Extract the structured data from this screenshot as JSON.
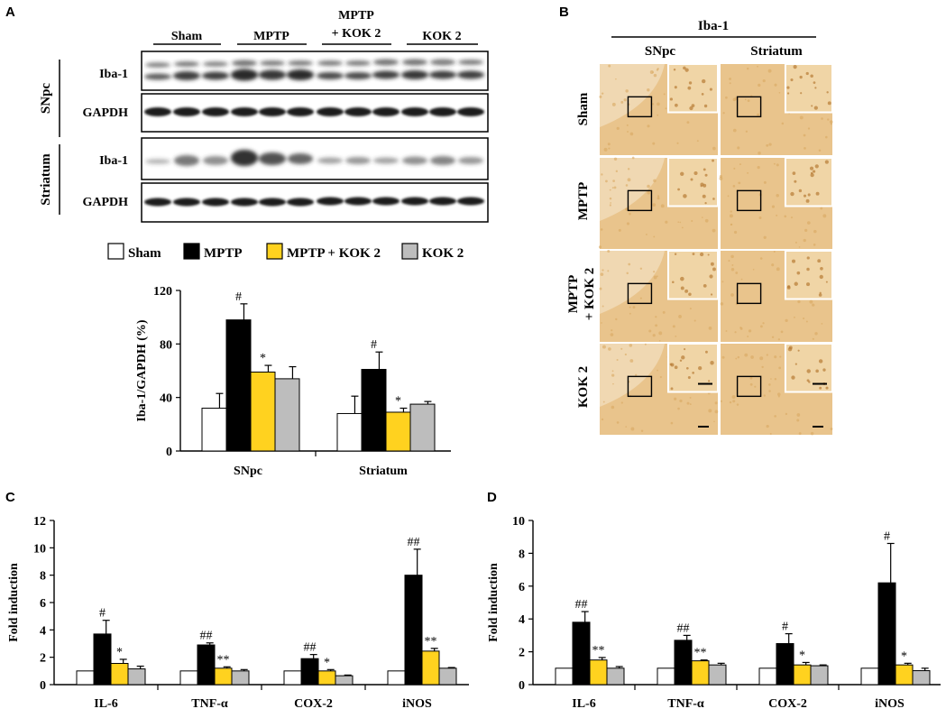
{
  "panels": {
    "a": "A",
    "b": "B",
    "c": "C",
    "d": "D"
  },
  "colors": {
    "sham": "#ffffff",
    "mptp": "#000000",
    "mptp_kok2": "#ffd21f",
    "kok2": "#bdbdbd",
    "tissue": "#e9c48c",
    "tissue_dark": "#d9a860"
  },
  "western": {
    "groups": [
      "Sham",
      "MPTP",
      "MPTP",
      "+ KOK 2",
      "KOK 2"
    ],
    "regions": [
      "SNpc",
      "Striatum"
    ],
    "rows": [
      "Iba-1",
      "GAPDH",
      "Iba-1",
      "GAPDH"
    ]
  },
  "legend": [
    "Sham",
    "MPTP",
    "MPTP + KOK 2",
    "KOK 2"
  ],
  "histology": {
    "title": "Iba-1",
    "columns": [
      "SNpc",
      "Striatum"
    ],
    "rows": [
      "Sham",
      "MPTP",
      "MPTP",
      "+ KOK 2",
      "KOK 2"
    ]
  },
  "chart_data": [
    {
      "type": "bar",
      "panel": "A",
      "categories": [
        "SNpc",
        "Striatum"
      ],
      "ylabel": "Iba-1/GAPDH (%)",
      "ylim": [
        0,
        120
      ],
      "yticks": [
        "0",
        "40",
        "80",
        "120"
      ],
      "series": [
        {
          "name": "Sham",
          "values": [
            32,
            28
          ],
          "errors": [
            11,
            13
          ],
          "sig": [
            "",
            ""
          ]
        },
        {
          "name": "MPTP",
          "values": [
            98,
            61
          ],
          "errors": [
            12,
            13
          ],
          "sig": [
            "#",
            "#"
          ]
        },
        {
          "name": "MPTP + KOK 2",
          "values": [
            59,
            29
          ],
          "errors": [
            5,
            3
          ],
          "sig": [
            "*",
            "*"
          ]
        },
        {
          "name": "KOK 2",
          "values": [
            54,
            35
          ],
          "errors": [
            9,
            2
          ],
          "sig": [
            "",
            ""
          ]
        }
      ]
    },
    {
      "type": "bar",
      "panel": "C",
      "categories": [
        "IL-6",
        "TNF-α",
        "COX-2",
        "iNOS"
      ],
      "ylabel": "Fold induction",
      "ylim": [
        0,
        12
      ],
      "yticks": [
        "0",
        "2",
        "4",
        "6",
        "8",
        "10",
        "12"
      ],
      "series": [
        {
          "name": "Sham",
          "values": [
            1,
            1,
            1,
            1
          ],
          "errors": [
            0,
            0,
            0,
            0
          ],
          "sig": [
            "",
            "",
            "",
            ""
          ]
        },
        {
          "name": "MPTP",
          "values": [
            3.7,
            2.9,
            1.9,
            8.0
          ],
          "errors": [
            1.0,
            0.15,
            0.3,
            1.9
          ],
          "sig": [
            "#",
            "##",
            "##",
            "##"
          ]
        },
        {
          "name": "MPTP + KOK 2",
          "values": [
            1.55,
            1.2,
            1.0,
            2.45
          ],
          "errors": [
            0.3,
            0.1,
            0.1,
            0.2
          ],
          "sig": [
            "*",
            "**",
            "*",
            "**"
          ]
        },
        {
          "name": "KOK 2",
          "values": [
            1.15,
            1.0,
            0.65,
            1.2
          ],
          "errors": [
            0.2,
            0.1,
            0.05,
            0.05
          ],
          "sig": [
            "",
            "",
            "",
            ""
          ]
        }
      ]
    },
    {
      "type": "bar",
      "panel": "D",
      "categories": [
        "IL-6",
        "TNF-α",
        "COX-2",
        "iNOS"
      ],
      "ylabel": "Fold induction",
      "ylim": [
        0,
        10
      ],
      "yticks": [
        "0",
        "2",
        "4",
        "6",
        "8",
        "10"
      ],
      "series": [
        {
          "name": "Sham",
          "values": [
            1,
            1,
            1,
            1
          ],
          "errors": [
            0,
            0,
            0,
            0
          ],
          "sig": [
            "",
            "",
            "",
            ""
          ]
        },
        {
          "name": "MPTP",
          "values": [
            3.8,
            2.7,
            2.5,
            6.2
          ],
          "errors": [
            0.65,
            0.3,
            0.6,
            2.4
          ],
          "sig": [
            "##",
            "##",
            "#",
            "#"
          ]
        },
        {
          "name": "MPTP + KOK 2",
          "values": [
            1.5,
            1.45,
            1.2,
            1.2
          ],
          "errors": [
            0.15,
            0.05,
            0.15,
            0.1
          ],
          "sig": [
            "**",
            "**",
            "*",
            "*"
          ]
        },
        {
          "name": "KOK 2",
          "values": [
            1.0,
            1.2,
            1.15,
            0.85
          ],
          "errors": [
            0.1,
            0.1,
            0.05,
            0.15
          ],
          "sig": [
            "",
            "",
            "",
            ""
          ]
        }
      ]
    }
  ]
}
